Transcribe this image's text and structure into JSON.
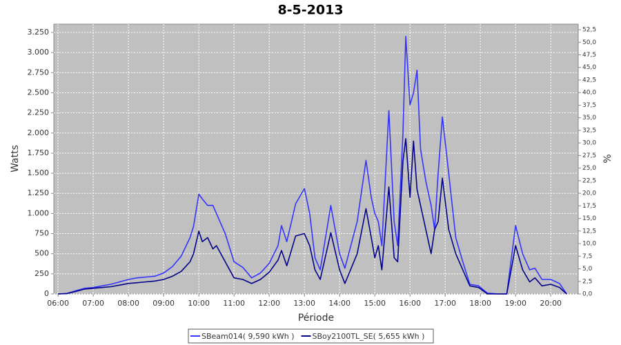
{
  "chart_data": {
    "type": "line",
    "title": "8-5-2013",
    "xlabel": "Période",
    "ylabel": "Watts",
    "y2label": "%",
    "x": [
      6.0,
      6.25,
      6.5,
      6.75,
      7.0,
      7.25,
      7.5,
      7.75,
      8.0,
      8.25,
      8.5,
      8.75,
      9.0,
      9.25,
      9.5,
      9.75,
      9.85,
      10.0,
      10.1,
      10.25,
      10.4,
      10.5,
      10.75,
      11.0,
      11.25,
      11.5,
      11.75,
      12.0,
      12.25,
      12.35,
      12.5,
      12.75,
      13.0,
      13.15,
      13.3,
      13.45,
      13.75,
      14.0,
      14.15,
      14.5,
      14.75,
      14.9,
      15.0,
      15.1,
      15.2,
      15.4,
      15.55,
      15.65,
      15.8,
      15.88,
      16.0,
      16.1,
      16.2,
      16.3,
      16.45,
      16.6,
      16.7,
      16.8,
      16.92,
      17.1,
      17.3,
      17.5,
      17.7,
      17.95,
      18.2,
      18.5,
      18.75,
      19.0,
      19.2,
      19.4,
      19.55,
      19.75,
      20.0,
      20.25,
      20.45
    ],
    "series": [
      {
        "name": "SBeam014( 9,590 kWh )",
        "color": "#3333ff",
        "values": [
          0,
          5,
          40,
          70,
          80,
          100,
          120,
          150,
          180,
          200,
          210,
          220,
          260,
          340,
          470,
          700,
          840,
          1240,
          1180,
          1100,
          1100,
          1000,
          750,
          400,
          330,
          200,
          260,
          380,
          600,
          850,
          650,
          1120,
          1310,
          1000,
          450,
          300,
          1100,
          500,
          320,
          900,
          1660,
          1200,
          1000,
          900,
          600,
          2280,
          900,
          600,
          2000,
          3200,
          2350,
          2500,
          2780,
          1800,
          1400,
          1100,
          800,
          1500,
          2200,
          1500,
          700,
          400,
          120,
          100,
          10,
          0,
          0,
          850,
          500,
          300,
          320,
          180,
          180,
          130,
          0
        ]
      },
      {
        "name": "SBoy2100TL_SE( 5,655 kWh )",
        "color": "#000088",
        "values": [
          0,
          5,
          30,
          60,
          70,
          80,
          90,
          110,
          130,
          140,
          150,
          160,
          180,
          220,
          280,
          400,
          500,
          780,
          650,
          700,
          560,
          600,
          400,
          200,
          180,
          130,
          180,
          270,
          420,
          540,
          350,
          720,
          750,
          600,
          300,
          180,
          760,
          300,
          130,
          500,
          1060,
          700,
          450,
          600,
          300,
          1330,
          450,
          400,
          1650,
          1930,
          1200,
          1900,
          1300,
          1100,
          800,
          500,
          800,
          900,
          1440,
          800,
          500,
          300,
          100,
          80,
          0,
          0,
          0,
          600,
          300,
          150,
          200,
          100,
          120,
          80,
          0
        ]
      }
    ],
    "xlim": [
      5.88,
      20.78
    ],
    "xticks": [
      {
        "value": 6,
        "label": "06:00"
      },
      {
        "value": 7,
        "label": "07:00"
      },
      {
        "value": 8,
        "label": "08:00"
      },
      {
        "value": 9,
        "label": "09:00"
      },
      {
        "value": 10,
        "label": "10:00"
      },
      {
        "value": 11,
        "label": "11:00"
      },
      {
        "value": 12,
        "label": "12:00"
      },
      {
        "value": 13,
        "label": "13:00"
      },
      {
        "value": 14,
        "label": "14:00"
      },
      {
        "value": 15,
        "label": "15:00"
      },
      {
        "value": 16,
        "label": "16:00"
      },
      {
        "value": 17,
        "label": "17:00"
      },
      {
        "value": 18,
        "label": "18:00"
      },
      {
        "value": 19,
        "label": "19:00"
      },
      {
        "value": 20,
        "label": "20:00"
      }
    ],
    "ylim": [
      0,
      3353
    ],
    "yticks": [
      0,
      250,
      500,
      750,
      {
        "value": 1000,
        "label": "1.000"
      },
      {
        "value": 1250,
        "label": "1.250"
      },
      {
        "value": 1500,
        "label": "1.500"
      },
      {
        "value": 1750,
        "label": "1.750"
      },
      {
        "value": 2000,
        "label": "2.000"
      },
      {
        "value": 2250,
        "label": "2.250"
      },
      {
        "value": 2500,
        "label": "2.500"
      },
      {
        "value": 2750,
        "label": "2.750"
      },
      {
        "value": 3000,
        "label": "3.000"
      },
      {
        "value": 3250,
        "label": "3.250"
      }
    ],
    "y2lim": [
      0,
      53.6
    ],
    "y2ticks": [
      {
        "value": 0,
        "label": "0,0"
      },
      {
        "value": 2.5,
        "label": "2,5"
      },
      {
        "value": 5,
        "label": "5,0"
      },
      {
        "value": 7.5,
        "label": "7,5"
      },
      {
        "value": 10,
        "label": "10,0"
      },
      {
        "value": 12.5,
        "label": "12,5"
      },
      {
        "value": 15,
        "label": "15,0"
      },
      {
        "value": 17.5,
        "label": "17,5"
      },
      {
        "value": 20,
        "label": "20,0"
      },
      {
        "value": 22.5,
        "label": "22,5"
      },
      {
        "value": 25,
        "label": "25,0"
      },
      {
        "value": 27.5,
        "label": "27,5"
      },
      {
        "value": 30,
        "label": "30,0"
      },
      {
        "value": 32.5,
        "label": "32,5"
      },
      {
        "value": 35,
        "label": "35,0"
      },
      {
        "value": 37.5,
        "label": "37,5"
      },
      {
        "value": 40,
        "label": "40,0"
      },
      {
        "value": 42.5,
        "label": "42,5"
      },
      {
        "value": 45,
        "label": "45,0"
      },
      {
        "value": 47.5,
        "label": "47,5"
      },
      {
        "value": 50,
        "label": "50,0"
      },
      {
        "value": 52.5,
        "label": "52,5"
      }
    ],
    "grid": true,
    "legend": "bottom"
  }
}
